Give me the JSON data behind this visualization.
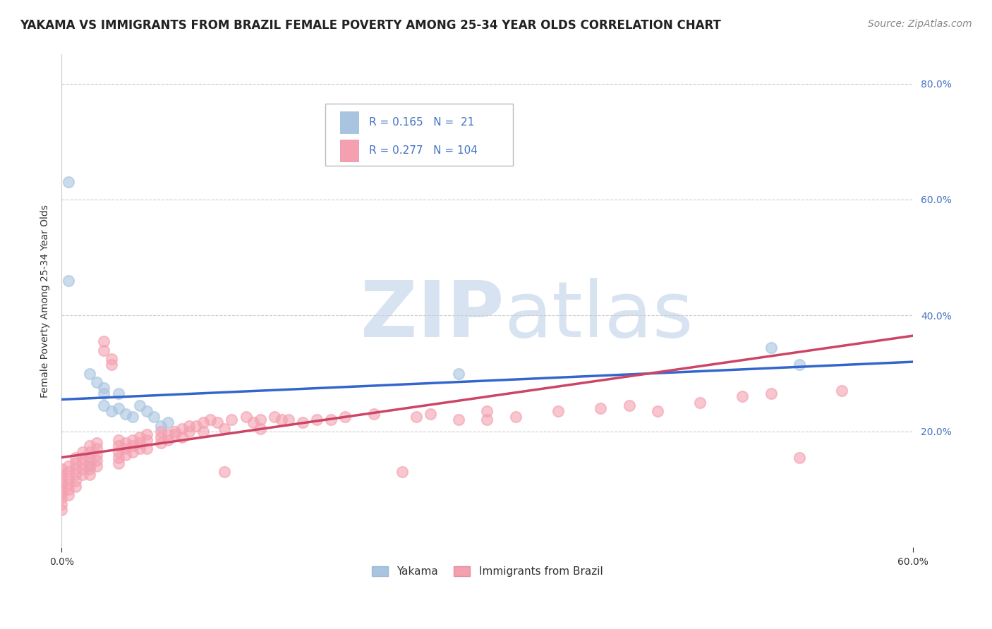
{
  "title": "YAKAMA VS IMMIGRANTS FROM BRAZIL FEMALE POVERTY AMONG 25-34 YEAR OLDS CORRELATION CHART",
  "source": "Source: ZipAtlas.com",
  "ylabel_left": "Female Poverty Among 25-34 Year Olds",
  "legend_labels": [
    "Yakama",
    "Immigrants from Brazil"
  ],
  "legend_r": [
    0.165,
    0.277
  ],
  "legend_n": [
    21,
    104
  ],
  "series": [
    {
      "name": "Yakama",
      "color": "#a8c4e0",
      "line_color": "#3366cc",
      "line_style": "solid",
      "points": [
        [
          0.005,
          0.63
        ],
        [
          0.005,
          0.46
        ],
        [
          0.02,
          0.3
        ],
        [
          0.025,
          0.285
        ],
        [
          0.03,
          0.275
        ],
        [
          0.03,
          0.265
        ],
        [
          0.03,
          0.245
        ],
        [
          0.035,
          0.235
        ],
        [
          0.04,
          0.265
        ],
        [
          0.04,
          0.24
        ],
        [
          0.045,
          0.23
        ],
        [
          0.05,
          0.225
        ],
        [
          0.055,
          0.245
        ],
        [
          0.06,
          0.235
        ],
        [
          0.065,
          0.225
        ],
        [
          0.07,
          0.21
        ],
        [
          0.075,
          0.215
        ],
        [
          0.02,
          0.14
        ],
        [
          0.28,
          0.3
        ],
        [
          0.5,
          0.345
        ],
        [
          0.52,
          0.315
        ]
      ],
      "trend_x": [
        0.0,
        0.6
      ],
      "trend_y": [
        0.255,
        0.32
      ]
    },
    {
      "name": "Immigrants from Brazil",
      "color": "#f4a0b0",
      "line_color": "#cc4466",
      "line_style": "solid",
      "points": [
        [
          0.0,
          0.135
        ],
        [
          0.0,
          0.125
        ],
        [
          0.0,
          0.115
        ],
        [
          0.0,
          0.105
        ],
        [
          0.0,
          0.095
        ],
        [
          0.0,
          0.085
        ],
        [
          0.0,
          0.075
        ],
        [
          0.0,
          0.065
        ],
        [
          0.005,
          0.14
        ],
        [
          0.005,
          0.13
        ],
        [
          0.005,
          0.12
        ],
        [
          0.005,
          0.11
        ],
        [
          0.005,
          0.1
        ],
        [
          0.005,
          0.09
        ],
        [
          0.01,
          0.155
        ],
        [
          0.01,
          0.145
        ],
        [
          0.01,
          0.135
        ],
        [
          0.01,
          0.125
        ],
        [
          0.01,
          0.115
        ],
        [
          0.01,
          0.105
        ],
        [
          0.015,
          0.165
        ],
        [
          0.015,
          0.155
        ],
        [
          0.015,
          0.145
        ],
        [
          0.015,
          0.135
        ],
        [
          0.015,
          0.125
        ],
        [
          0.02,
          0.175
        ],
        [
          0.02,
          0.165
        ],
        [
          0.02,
          0.155
        ],
        [
          0.02,
          0.145
        ],
        [
          0.02,
          0.135
        ],
        [
          0.02,
          0.125
        ],
        [
          0.025,
          0.18
        ],
        [
          0.025,
          0.17
        ],
        [
          0.025,
          0.16
        ],
        [
          0.025,
          0.15
        ],
        [
          0.025,
          0.14
        ],
        [
          0.03,
          0.355
        ],
        [
          0.03,
          0.34
        ],
        [
          0.035,
          0.325
        ],
        [
          0.035,
          0.315
        ],
        [
          0.04,
          0.185
        ],
        [
          0.04,
          0.175
        ],
        [
          0.04,
          0.165
        ],
        [
          0.04,
          0.155
        ],
        [
          0.04,
          0.145
        ],
        [
          0.045,
          0.18
        ],
        [
          0.045,
          0.17
        ],
        [
          0.045,
          0.16
        ],
        [
          0.05,
          0.185
        ],
        [
          0.05,
          0.175
        ],
        [
          0.05,
          0.165
        ],
        [
          0.055,
          0.19
        ],
        [
          0.055,
          0.18
        ],
        [
          0.055,
          0.17
        ],
        [
          0.06,
          0.195
        ],
        [
          0.06,
          0.185
        ],
        [
          0.06,
          0.17
        ],
        [
          0.07,
          0.2
        ],
        [
          0.07,
          0.19
        ],
        [
          0.07,
          0.18
        ],
        [
          0.075,
          0.195
        ],
        [
          0.075,
          0.185
        ],
        [
          0.08,
          0.2
        ],
        [
          0.08,
          0.195
        ],
        [
          0.085,
          0.205
        ],
        [
          0.085,
          0.19
        ],
        [
          0.09,
          0.21
        ],
        [
          0.09,
          0.2
        ],
        [
          0.095,
          0.21
        ],
        [
          0.1,
          0.215
        ],
        [
          0.1,
          0.2
        ],
        [
          0.105,
          0.22
        ],
        [
          0.11,
          0.215
        ],
        [
          0.115,
          0.205
        ],
        [
          0.115,
          0.13
        ],
        [
          0.12,
          0.22
        ],
        [
          0.13,
          0.225
        ],
        [
          0.135,
          0.215
        ],
        [
          0.14,
          0.22
        ],
        [
          0.14,
          0.205
        ],
        [
          0.15,
          0.225
        ],
        [
          0.155,
          0.22
        ],
        [
          0.16,
          0.22
        ],
        [
          0.17,
          0.215
        ],
        [
          0.18,
          0.22
        ],
        [
          0.19,
          0.22
        ],
        [
          0.2,
          0.225
        ],
        [
          0.22,
          0.23
        ],
        [
          0.24,
          0.13
        ],
        [
          0.25,
          0.225
        ],
        [
          0.26,
          0.23
        ],
        [
          0.28,
          0.22
        ],
        [
          0.3,
          0.235
        ],
        [
          0.3,
          0.22
        ],
        [
          0.32,
          0.225
        ],
        [
          0.35,
          0.235
        ],
        [
          0.38,
          0.24
        ],
        [
          0.4,
          0.245
        ],
        [
          0.42,
          0.235
        ],
        [
          0.45,
          0.25
        ],
        [
          0.48,
          0.26
        ],
        [
          0.5,
          0.265
        ],
        [
          0.52,
          0.155
        ],
        [
          0.55,
          0.27
        ]
      ],
      "trend_x": [
        0.0,
        0.6
      ],
      "trend_y": [
        0.155,
        0.365
      ]
    }
  ],
  "xlim": [
    0.0,
    0.6
  ],
  "ylim": [
    0.0,
    0.85
  ],
  "x_ticks": [
    0.0,
    0.6
  ],
  "y_ticks_right": [
    0.0,
    0.2,
    0.4,
    0.6,
    0.8
  ],
  "background_color": "#ffffff",
  "watermark_text": "ZIP",
  "watermark_text2": "atlas",
  "title_fontsize": 12,
  "axis_label_fontsize": 10,
  "tick_fontsize": 10,
  "source_fontsize": 10
}
